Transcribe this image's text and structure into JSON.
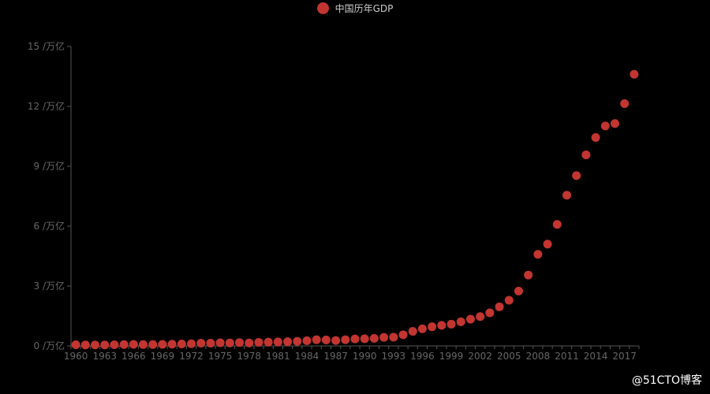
{
  "legend": {
    "label": "中国历年GDP"
  },
  "watermark": "@51CTO博客",
  "colors": {
    "background": "#000000",
    "point": "#c23531",
    "axis": "#555555",
    "tick_text": "#666666"
  },
  "chart_data": {
    "type": "scatter",
    "series": [
      {
        "name": "中国历年GDP",
        "x": [
          1960,
          1961,
          1962,
          1963,
          1964,
          1965,
          1966,
          1967,
          1968,
          1969,
          1970,
          1971,
          1972,
          1973,
          1974,
          1975,
          1976,
          1977,
          1978,
          1979,
          1980,
          1981,
          1982,
          1983,
          1984,
          1985,
          1986,
          1987,
          1988,
          1989,
          1990,
          1991,
          1992,
          1993,
          1994,
          1995,
          1996,
          1997,
          1998,
          1999,
          2000,
          2001,
          2002,
          2003,
          2004,
          2005,
          2006,
          2007,
          2008,
          2009,
          2010,
          2011,
          2012,
          2013,
          2014,
          2015,
          2016,
          2017,
          2018
        ],
        "y": [
          0.06,
          0.05,
          0.05,
          0.05,
          0.06,
          0.07,
          0.08,
          0.07,
          0.07,
          0.08,
          0.09,
          0.1,
          0.11,
          0.14,
          0.14,
          0.16,
          0.15,
          0.17,
          0.15,
          0.18,
          0.19,
          0.2,
          0.21,
          0.23,
          0.26,
          0.31,
          0.3,
          0.27,
          0.31,
          0.35,
          0.36,
          0.38,
          0.43,
          0.44,
          0.56,
          0.73,
          0.86,
          0.96,
          1.03,
          1.09,
          1.21,
          1.34,
          1.47,
          1.66,
          1.96,
          2.29,
          2.75,
          3.55,
          4.59,
          5.1,
          6.09,
          7.55,
          8.53,
          9.57,
          10.44,
          11.02,
          11.14,
          12.14,
          13.61
        ]
      }
    ],
    "x_tick_labels": [
      "1960",
      "1963",
      "1966",
      "1969",
      "1972",
      "1975",
      "1978",
      "1981",
      "1984",
      "1987",
      "1990",
      "1993",
      "1996",
      "1999",
      "2002",
      "2005",
      "2008",
      "2011",
      "2014",
      "2017"
    ],
    "y_tick_labels": [
      "0 /万亿",
      "3 /万亿",
      "6 /万亿",
      "9 /万亿",
      "12 /万亿",
      "15 /万亿"
    ],
    "y_ticks": [
      0,
      3,
      6,
      9,
      12,
      15
    ],
    "ylim": [
      0,
      15
    ],
    "xlim": [
      1960,
      2018
    ],
    "grid": false,
    "legend_position": "top-center"
  }
}
